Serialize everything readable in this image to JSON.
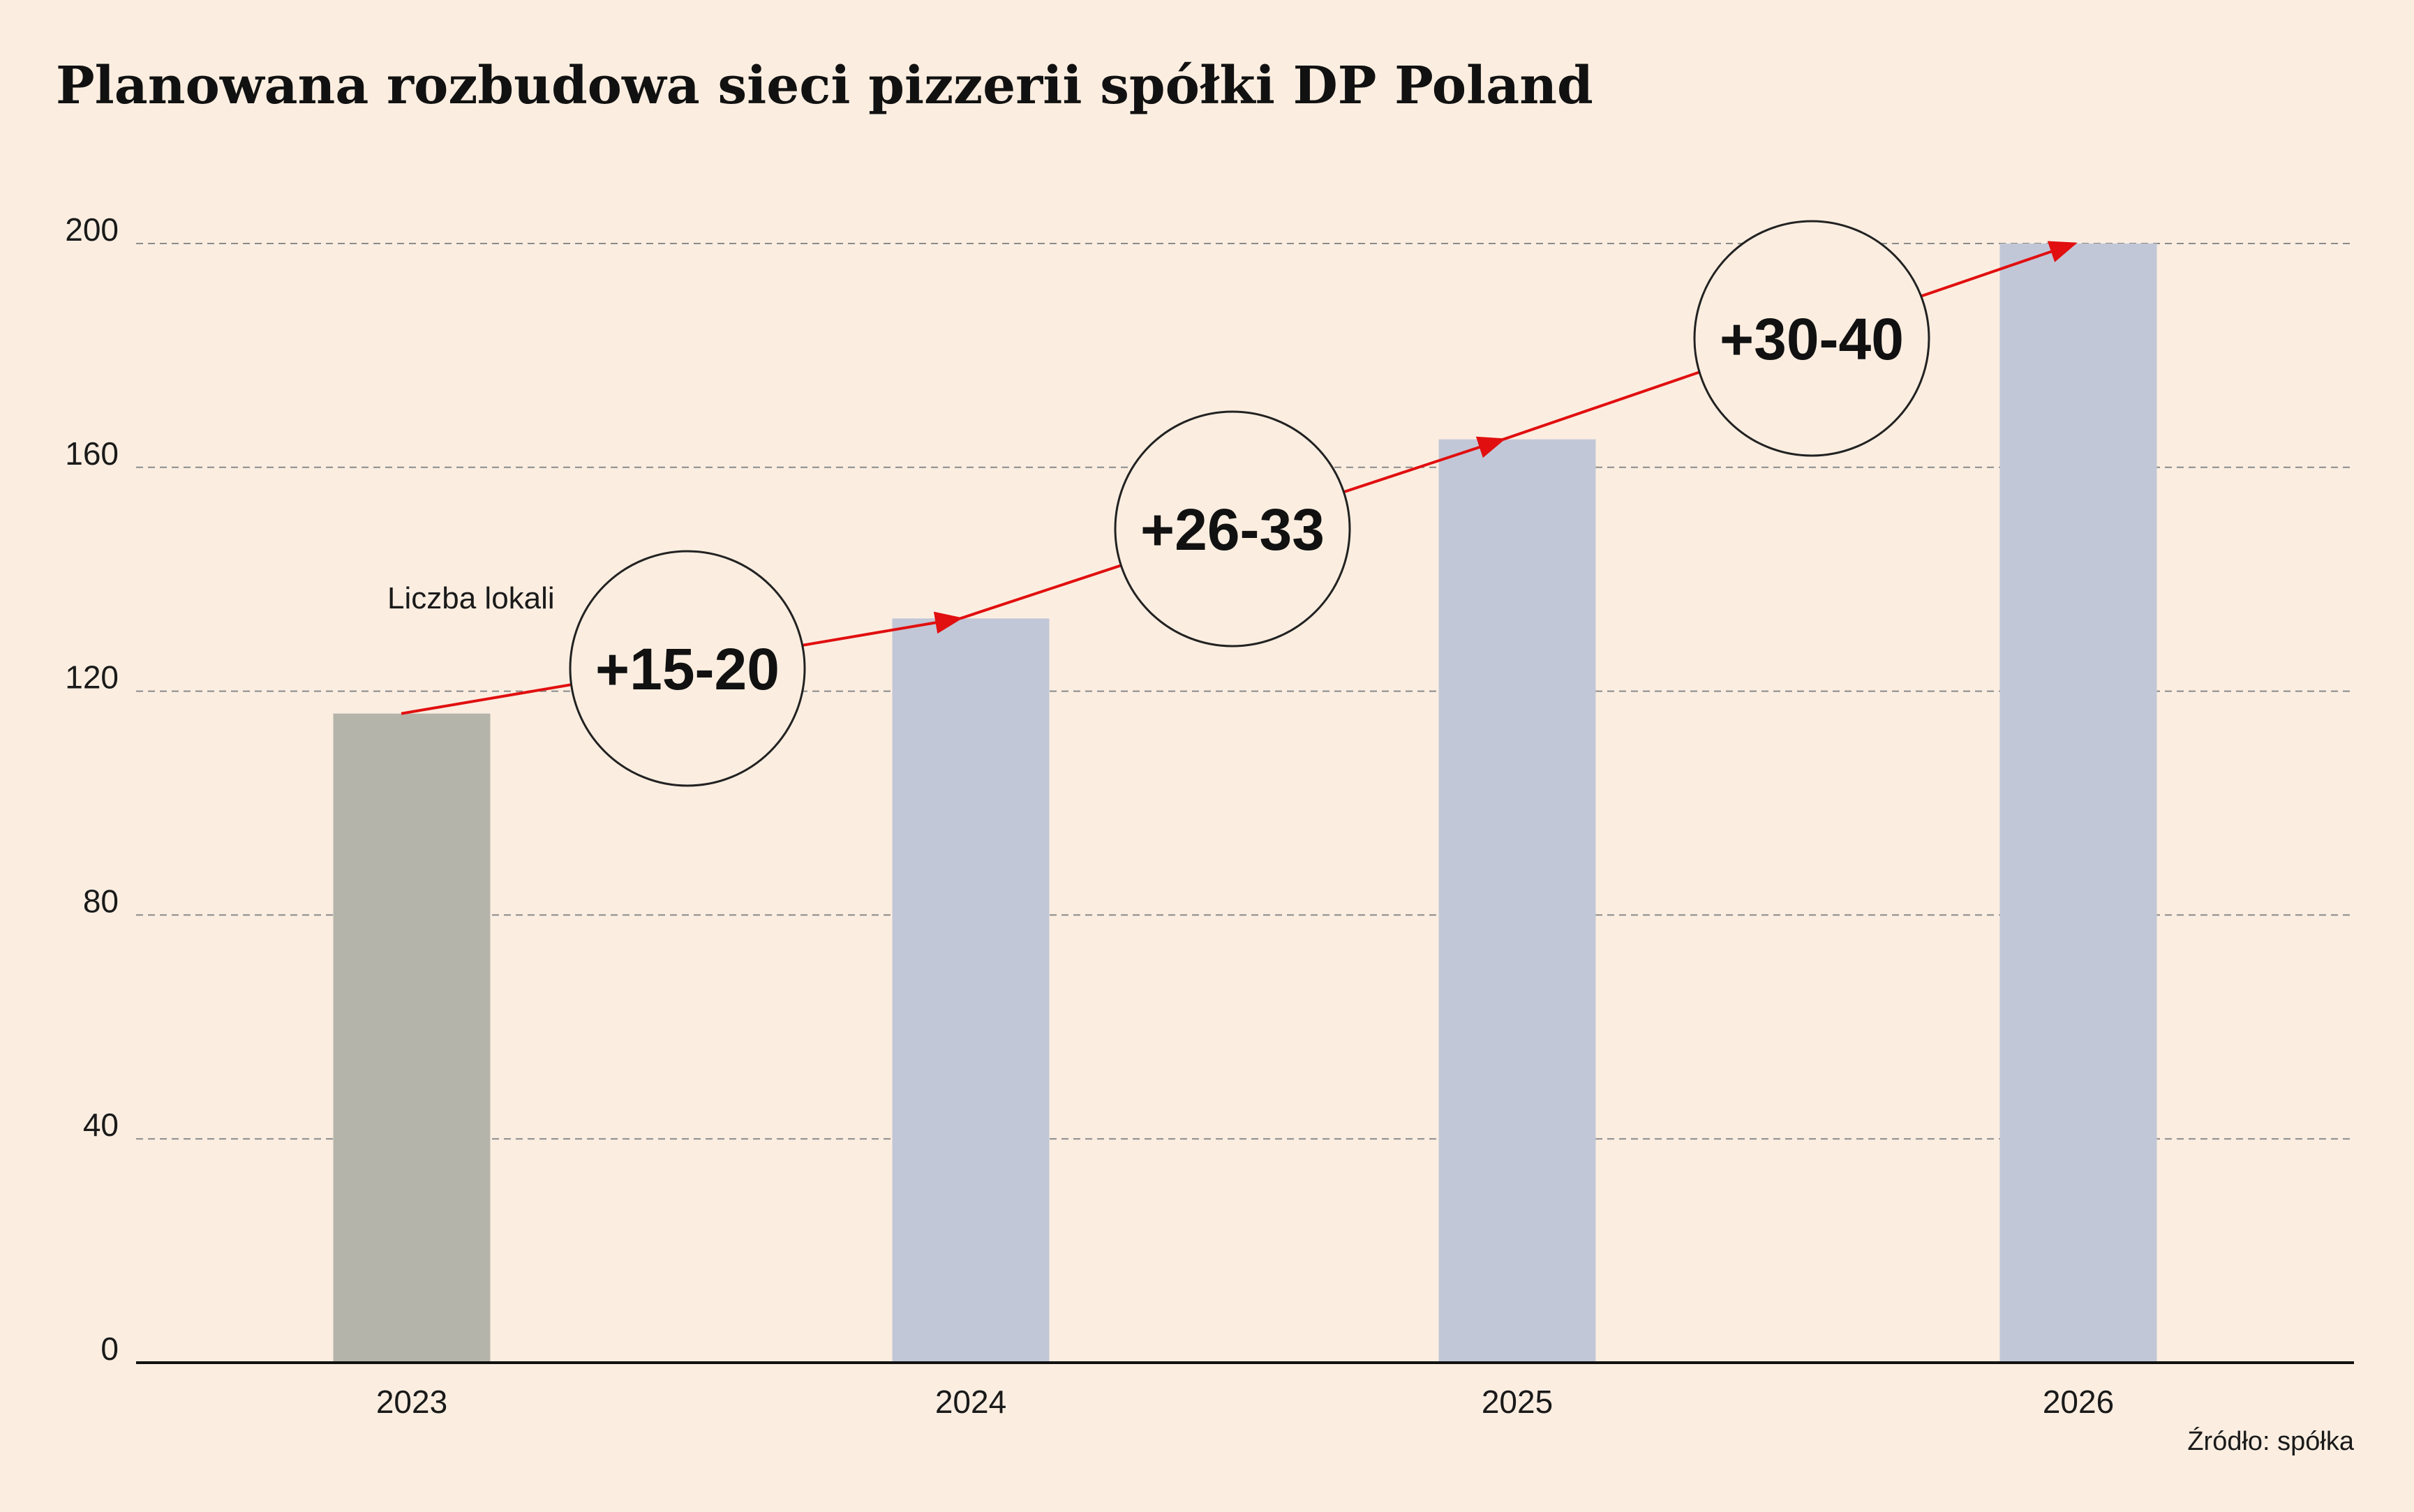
{
  "chart_data": {
    "type": "bar",
    "title": "Planowana rozbudowa sieci pizzerii spółki DP Poland",
    "categories": [
      "2023",
      "2024",
      "2025",
      "2026"
    ],
    "values": [
      116,
      133,
      165,
      200
    ],
    "series_label": "Liczba lokali",
    "ylim": [
      0,
      200
    ],
    "yticks": [
      0,
      40,
      80,
      120,
      160,
      200
    ],
    "grid": true,
    "colors": [
      "#b5b4ab",
      "#c2c7d7",
      "#c2c7d7",
      "#c2c7d7"
    ],
    "trend_color": "#e10f0f",
    "increments": [
      "+15-20",
      "+26-33",
      "+30-40"
    ],
    "source": "Źródło: spółka"
  }
}
